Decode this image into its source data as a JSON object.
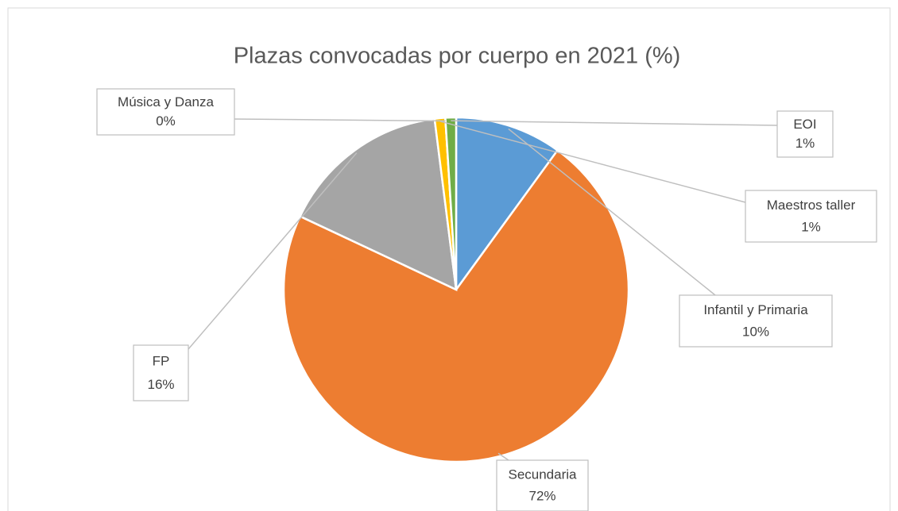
{
  "chart_data": {
    "type": "pie",
    "title": "Plazas convocadas por cuerpo en 2021 (%)",
    "categories": [
      "Infantil y Primaria",
      "Secundaria",
      "FP",
      "Maestros taller",
      "Música y Danza",
      "EOI"
    ],
    "values": [
      10,
      72,
      16,
      1,
      0,
      1
    ],
    "value_labels": [
      "10%",
      "72%",
      "16%",
      "1%",
      "0%",
      "1%"
    ],
    "colors": [
      "#5b9bd5",
      "#ed7d31",
      "#a5a5a5",
      "#ffc000",
      "#4472c4",
      "#70ad47"
    ]
  }
}
